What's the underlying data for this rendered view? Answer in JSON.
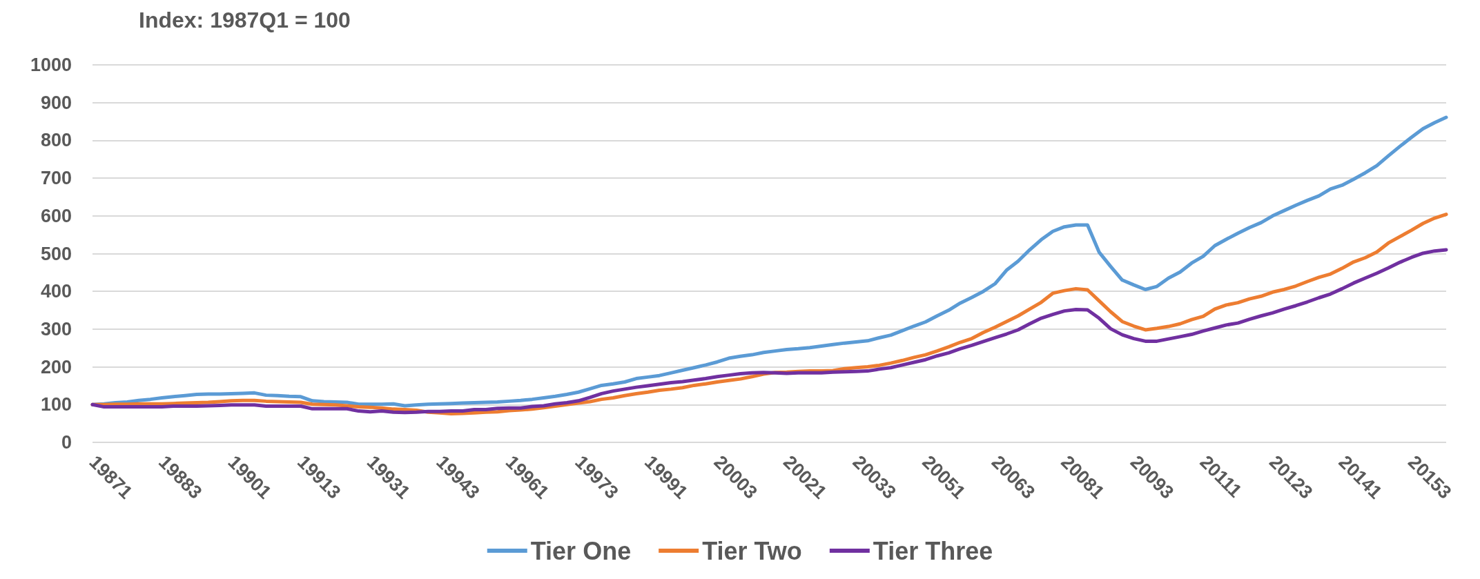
{
  "chart_data": {
    "type": "line",
    "title": "Index: 1987Q1 = 100",
    "categories": [
      "19871",
      null,
      null,
      null,
      null,
      null,
      "19883",
      null,
      null,
      null,
      null,
      null,
      "19901",
      null,
      null,
      null,
      null,
      null,
      "19913",
      null,
      null,
      null,
      null,
      null,
      "19931",
      null,
      null,
      null,
      null,
      null,
      "19943",
      null,
      null,
      null,
      null,
      null,
      "19961",
      null,
      null,
      null,
      null,
      null,
      "19973",
      null,
      null,
      null,
      null,
      null,
      "19991",
      null,
      null,
      null,
      null,
      null,
      "20003",
      null,
      null,
      null,
      null,
      null,
      "20021",
      null,
      null,
      null,
      null,
      null,
      "20033",
      null,
      null,
      null,
      null,
      null,
      "20051",
      null,
      null,
      null,
      null,
      null,
      "20063",
      null,
      null,
      null,
      null,
      null,
      "20081",
      null,
      null,
      null,
      null,
      null,
      "20093",
      null,
      null,
      null,
      null,
      null,
      "20111",
      null,
      null,
      null,
      null,
      null,
      "20123",
      null,
      null,
      null,
      null,
      null,
      "20141",
      null,
      null,
      null,
      null,
      null,
      "20153",
      null,
      null,
      null
    ],
    "series": [
      {
        "name": "Tier One",
        "color": "#5b9bd5",
        "values": [
          100,
          102,
          105,
          107,
          111,
          114,
          118,
          121,
          124,
          127,
          128,
          128,
          129,
          130,
          131,
          125,
          124,
          122,
          121,
          110,
          108,
          107,
          106,
          101,
          101,
          101,
          102,
          97,
          99,
          101,
          102,
          103,
          104,
          105,
          106,
          107,
          109,
          111,
          114,
          118,
          122,
          127,
          133,
          142,
          151,
          155,
          160,
          169,
          173,
          177,
          184,
          191,
          198,
          205,
          213,
          223,
          228,
          232,
          238,
          242,
          246,
          248,
          251,
          255,
          259,
          263,
          266,
          269,
          277,
          284,
          296,
          308,
          319,
          335,
          350,
          369,
          384,
          400,
          420,
          456,
          480,
          510,
          537,
          559,
          571,
          576,
          576,
          504,
          466,
          430,
          417,
          405,
          413,
          435,
          451,
          475,
          493,
          521,
          538,
          554,
          569,
          582,
          600,
          614,
          628,
          641,
          653,
          671,
          681,
          697,
          714,
          733,
          759,
          784,
          808,
          831,
          847,
          861
        ]
      },
      {
        "name": "Tier Two",
        "color": "#ed7d31",
        "values": [
          100,
          100,
          101,
          101,
          102,
          102,
          102,
          103,
          104,
          105,
          106,
          108,
          110,
          111,
          111,
          109,
          108,
          107,
          106,
          101,
          100,
          99,
          97,
          94,
          93,
          91,
          88,
          87,
          85,
          80,
          78,
          76,
          77,
          78,
          80,
          81,
          84,
          86,
          88,
          92,
          96,
          100,
          104,
          108,
          114,
          118,
          124,
          129,
          133,
          138,
          141,
          145,
          151,
          155,
          160,
          164,
          168,
          174,
          181,
          185,
          186,
          188,
          189,
          189,
          190,
          195,
          198,
          200,
          204,
          210,
          217,
          225,
          232,
          242,
          253,
          265,
          275,
          291,
          305,
          320,
          335,
          353,
          371,
          395,
          402,
          407,
          404,
          375,
          346,
          320,
          308,
          298,
          302,
          307,
          314,
          325,
          334,
          353,
          364,
          370,
          380,
          387,
          398,
          405,
          414,
          426,
          437,
          446,
          461,
          478,
          489,
          504,
          528,
          545,
          562,
          580,
          594,
          604
        ]
      },
      {
        "name": "Tier Three",
        "color": "#7030a0",
        "values": [
          100,
          94,
          94,
          94,
          94,
          94,
          94,
          96,
          96,
          96,
          97,
          98,
          99,
          99,
          99,
          96,
          96,
          96,
          96,
          89,
          89,
          89,
          89,
          83,
          81,
          83,
          80,
          79,
          80,
          82,
          82,
          83,
          83,
          87,
          87,
          90,
          91,
          91,
          95,
          97,
          102,
          105,
          110,
          119,
          129,
          136,
          141,
          146,
          150,
          154,
          158,
          161,
          165,
          169,
          174,
          178,
          182,
          184,
          185,
          184,
          183,
          184,
          184,
          184,
          186,
          187,
          188,
          189,
          194,
          198,
          205,
          212,
          219,
          229,
          237,
          248,
          257,
          267,
          277,
          287,
          298,
          314,
          329,
          339,
          348,
          352,
          351,
          329,
          301,
          285,
          275,
          268,
          268,
          274,
          280,
          286,
          295,
          303,
          311,
          316,
          326,
          335,
          343,
          353,
          362,
          372,
          383,
          393,
          407,
          422,
          435,
          448,
          462,
          477,
          490,
          501,
          507,
          510
        ]
      }
    ],
    "ylim": [
      0,
      1000
    ],
    "yticks": [
      0,
      100,
      200,
      300,
      400,
      500,
      600,
      700,
      800,
      900,
      1000
    ],
    "grid": "y",
    "legend": "bottom",
    "marker": "none",
    "line_style": "solid"
  }
}
